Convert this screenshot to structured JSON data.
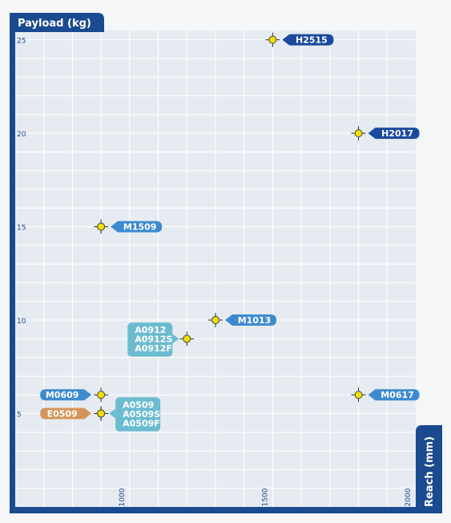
{
  "chart_data": {
    "type": "scatter",
    "title": "",
    "xlabel": "Reach (mm)",
    "ylabel": "Payload (kg)",
    "xlim": [
      600,
      2000
    ],
    "ylim": [
      0,
      25.5
    ],
    "x_ticks": [
      1000,
      1500,
      2000
    ],
    "y_ticks": [
      5,
      10,
      15,
      20,
      25
    ],
    "grid": true,
    "points": [
      {
        "x": 1500,
        "y": 25,
        "labels": [
          "H2515"
        ],
        "side": "right",
        "color": "#1a4a9c"
      },
      {
        "x": 1800,
        "y": 20,
        "labels": [
          "H2017"
        ],
        "side": "right",
        "color": "#1a4a9c"
      },
      {
        "x": 900,
        "y": 15,
        "labels": [
          "M1509"
        ],
        "side": "right",
        "color": "#3d8ad0"
      },
      {
        "x": 1300,
        "y": 10,
        "labels": [
          "M1013"
        ],
        "side": "right",
        "color": "#3d8ad0"
      },
      {
        "x": 1200,
        "y": 9,
        "labels": [
          "A0912",
          "A0912S",
          "A0912F"
        ],
        "side": "left",
        "color": "#6cbcd0"
      },
      {
        "x": 900,
        "y": 6,
        "labels": [
          "M0609"
        ],
        "side": "left",
        "color": "#3d8ad0"
      },
      {
        "x": 1800,
        "y": 6,
        "labels": [
          "M0617"
        ],
        "side": "right",
        "color": "#3d8ad0"
      },
      {
        "x": 900,
        "y": 5,
        "labels": [
          "E0509"
        ],
        "side": "left",
        "color": "#d4955a"
      },
      {
        "x": 900,
        "y": 5,
        "labels": [
          "A0509",
          "A0509S",
          "A0509F"
        ],
        "side": "right",
        "color": "#6cbcd0"
      }
    ]
  },
  "colors": {
    "frame": "#1a4a8f",
    "plot_bg": "#e6ebf1",
    "grid": "#ffffff",
    "marker_fill": "#f0e000",
    "tick_text": "#1a4a8f"
  }
}
